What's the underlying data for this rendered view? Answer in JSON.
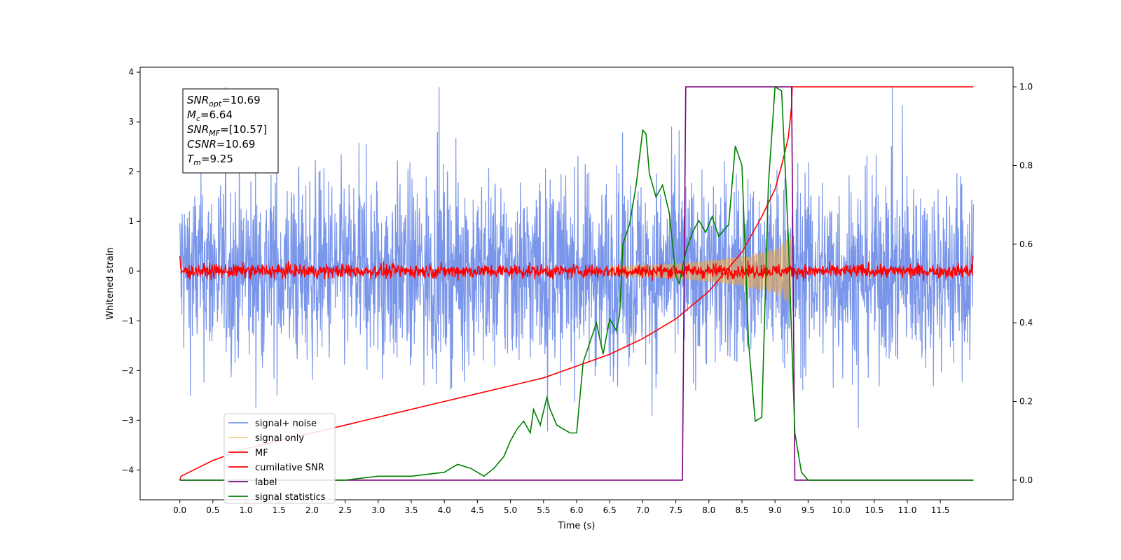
{
  "chart_data": {
    "type": "line",
    "title": "",
    "xlabel": "Time (s)",
    "ylabel": "Whitened strain",
    "xlim": [
      -0.6,
      12.6
    ],
    "ylim": [
      -4.6,
      4.1
    ],
    "y2lim": [
      -0.05,
      1.05
    ],
    "x_ticks": [
      "0.0",
      "0.5",
      "1.0",
      "1.5",
      "2.0",
      "2.5",
      "3.0",
      "3.5",
      "4.0",
      "4.5",
      "5.0",
      "5.5",
      "6.0",
      "6.5",
      "7.0",
      "7.5",
      "8.0",
      "8.5",
      "9.0",
      "9.5",
      "10.0",
      "10.5",
      "11.0",
      "11.5"
    ],
    "y_ticks": [
      "4",
      "3",
      "2",
      "1",
      "0",
      "−1",
      "−2",
      "−3",
      "−4"
    ],
    "y2_ticks": [
      "1.0",
      "0.8",
      "0.6",
      "0.4",
      "0.2",
      "0.0"
    ],
    "grid": false,
    "legend_position": "lower-left",
    "annotation": {
      "lines": [
        {
          "main": "SNR",
          "sub": "opt",
          "value": "=10.69"
        },
        {
          "main": "M",
          "sub": "c",
          "value": "=6.64"
        },
        {
          "main": "SNR",
          "sub": "MF",
          "value": "=[10.57]"
        },
        {
          "main": "CSNR",
          "sub": "",
          "value": "=10.69"
        },
        {
          "main": "T",
          "sub": "m",
          "value": "=9.25"
        }
      ]
    },
    "series": [
      {
        "name": "signal+ noise",
        "color": "#4169e1",
        "axis": "left",
        "noise_amplitude": 2.2,
        "x_range": [
          0.0,
          12.0
        ]
      },
      {
        "name": "signal only",
        "color": "#f4a93b",
        "axis": "left",
        "chirp": {
          "start": 6.5,
          "end": 9.27,
          "envelope": [
            [
              6.5,
              0.1
            ],
            [
              7.5,
              0.15
            ],
            [
              8.0,
              0.22
            ],
            [
              8.5,
              0.3
            ],
            [
              9.0,
              0.45
            ],
            [
              9.25,
              0.7
            ]
          ]
        }
      },
      {
        "name": "MF",
        "color": "#ff0000",
        "axis": "left",
        "noise_amplitude": 0.2,
        "x_range": [
          0.0,
          12.0
        ]
      },
      {
        "name": "cumilative SNR",
        "color": "#ff0000",
        "axis": "right",
        "x": [
          0.0,
          0.02,
          0.5,
          1.0,
          1.5,
          2.0,
          2.5,
          3.0,
          3.5,
          4.0,
          4.5,
          5.0,
          5.5,
          6.0,
          6.5,
          7.0,
          7.5,
          8.0,
          8.5,
          8.8,
          9.0,
          9.1,
          9.2,
          9.25,
          9.26,
          12.0
        ],
        "y": [
          0.0,
          0.01,
          0.05,
          0.08,
          0.1,
          0.12,
          0.14,
          0.16,
          0.18,
          0.2,
          0.22,
          0.24,
          0.26,
          0.29,
          0.32,
          0.36,
          0.41,
          0.48,
          0.58,
          0.67,
          0.74,
          0.8,
          0.87,
          0.95,
          1.0,
          1.0
        ]
      },
      {
        "name": "label",
        "color": "#800080",
        "axis": "right",
        "x": [
          0.0,
          7.6,
          7.65,
          9.25,
          9.3,
          12.0
        ],
        "y": [
          0.0,
          0.0,
          1.0,
          1.0,
          0.0,
          0.0
        ]
      },
      {
        "name": "signal statistics",
        "color": "#008000",
        "axis": "right",
        "x": [
          0.0,
          2.5,
          3.0,
          3.5,
          4.0,
          4.2,
          4.4,
          4.6,
          4.75,
          4.9,
          5.0,
          5.1,
          5.2,
          5.3,
          5.35,
          5.45,
          5.55,
          5.6,
          5.7,
          5.8,
          5.9,
          6.0,
          6.1,
          6.2,
          6.3,
          6.4,
          6.5,
          6.6,
          6.65,
          6.7,
          6.8,
          6.9,
          7.0,
          7.05,
          7.1,
          7.2,
          7.3,
          7.4,
          7.5,
          7.55,
          7.65,
          7.75,
          7.85,
          7.95,
          8.05,
          8.15,
          8.3,
          8.4,
          8.5,
          8.6,
          8.7,
          8.8,
          8.9,
          9.0,
          9.1,
          9.2,
          9.3,
          9.4,
          9.5,
          12.0
        ],
        "y": [
          0.0,
          0.0,
          0.01,
          0.01,
          0.02,
          0.04,
          0.03,
          0.01,
          0.03,
          0.06,
          0.1,
          0.13,
          0.15,
          0.12,
          0.18,
          0.14,
          0.21,
          0.18,
          0.14,
          0.13,
          0.12,
          0.12,
          0.3,
          0.35,
          0.4,
          0.32,
          0.41,
          0.38,
          0.42,
          0.6,
          0.65,
          0.75,
          0.89,
          0.88,
          0.78,
          0.72,
          0.75,
          0.68,
          0.52,
          0.5,
          0.58,
          0.63,
          0.66,
          0.63,
          0.67,
          0.62,
          0.65,
          0.85,
          0.8,
          0.35,
          0.15,
          0.16,
          0.75,
          1.0,
          0.99,
          0.62,
          0.12,
          0.02,
          0.0,
          0.0
        ]
      }
    ]
  }
}
